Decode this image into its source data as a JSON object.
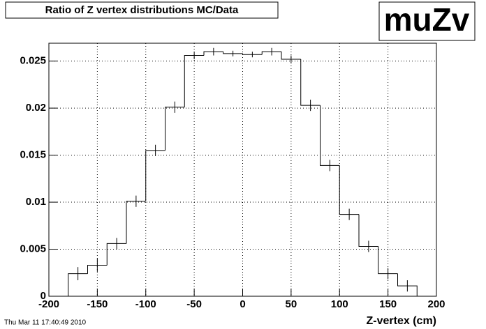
{
  "chart_data": {
    "type": "histogram",
    "title": "Ratio of Z vertex distributions MC/Data",
    "stats_label": "muZv",
    "x_label": "Z-vertex (cm)",
    "timestamp": "Thu Mar 11 17:40:49 2010",
    "bins": [
      -180,
      -160,
      -140,
      -120,
      -100,
      -80,
      -60,
      -40,
      -20,
      0,
      20,
      40,
      60,
      80,
      100,
      120,
      140,
      160,
      180
    ],
    "values": [
      0.0024,
      0.0033,
      0.0056,
      0.0101,
      0.0155,
      0.0201,
      0.0256,
      0.026,
      0.0258,
      0.0257,
      0.026,
      0.0252,
      0.0203,
      0.0139,
      0.0087,
      0.0053,
      0.0024,
      0.0011
    ],
    "errors": [
      0.0007,
      0.0007,
      0.0006,
      0.0006,
      0.0006,
      0.0006,
      0.0004,
      0.0004,
      0.0003,
      0.0003,
      0.0004,
      0.0004,
      0.0006,
      0.0006,
      0.0006,
      0.0006,
      0.0006,
      0.0006
    ],
    "color": "#000000",
    "xlim": [
      -200,
      200
    ],
    "xticks": [
      -200,
      -150,
      -100,
      -50,
      0,
      50,
      100,
      150,
      200
    ],
    "ylim": [
      0,
      0.0269
    ],
    "yticks": [
      0,
      0.005,
      0.01,
      0.015,
      0.02,
      0.025
    ],
    "grid": true
  }
}
